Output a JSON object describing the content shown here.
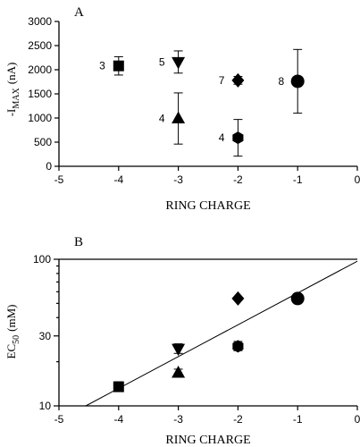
{
  "chart_data": [
    {
      "panel": "A",
      "type": "scatter",
      "xlabel": "RING CHARGE",
      "ylabel_main": "-I",
      "ylabel_sub": "MAX",
      "ylabel_unit": "(nA)",
      "xlim": [
        -5,
        0
      ],
      "ylim": [
        0,
        3000
      ],
      "xticks": [
        -5,
        -4,
        -3,
        -2,
        -1,
        0
      ],
      "yticks": [
        0,
        500,
        1000,
        1500,
        2000,
        2500,
        3000
      ],
      "yscale": "linear",
      "points": [
        {
          "x": -4,
          "y": 2080,
          "err": 190,
          "marker": "square",
          "label": "3"
        },
        {
          "x": -3,
          "y": 2160,
          "err": 230,
          "marker": "triangle-down",
          "label": "5"
        },
        {
          "x": -3,
          "y": 990,
          "err": 530,
          "marker": "triangle-up",
          "label": "4"
        },
        {
          "x": -2,
          "y": 1780,
          "err": 80,
          "marker": "diamond",
          "label": "7"
        },
        {
          "x": -2,
          "y": 590,
          "err": 380,
          "marker": "hexagon",
          "label": "4"
        },
        {
          "x": -1,
          "y": 1760,
          "err": 660,
          "marker": "circle",
          "label": "8"
        }
      ]
    },
    {
      "panel": "B",
      "type": "scatter",
      "xlabel": "RING CHARGE",
      "ylabel_main": "EC",
      "ylabel_sub": "50",
      "ylabel_unit": "(mM)",
      "xlim": [
        -5,
        0
      ],
      "ylim": [
        10,
        100
      ],
      "xticks": [
        -5,
        -4,
        -3,
        -2,
        -1,
        0
      ],
      "yticks": [
        10,
        30,
        100
      ],
      "yscale": "log",
      "points": [
        {
          "x": -4,
          "y": 13.5,
          "err_low": 12.8,
          "err_high": 14.6,
          "marker": "square"
        },
        {
          "x": -3,
          "y": 24.5,
          "err_low": 22.8,
          "err_high": 26.5,
          "marker": "triangle-down"
        },
        {
          "x": -3,
          "y": 16.8,
          "err_low": 15.8,
          "err_high": 17.8,
          "marker": "triangle-up"
        },
        {
          "x": -2,
          "y": 54,
          "marker": "diamond"
        },
        {
          "x": -2,
          "y": 25.5,
          "err_low": 23.8,
          "err_high": 27.5,
          "marker": "hexagon"
        },
        {
          "x": -1,
          "y": 54,
          "marker": "circle"
        }
      ],
      "fit_line": {
        "x": [
          -4.55,
          0
        ],
        "y": [
          10,
          97
        ]
      }
    }
  ]
}
